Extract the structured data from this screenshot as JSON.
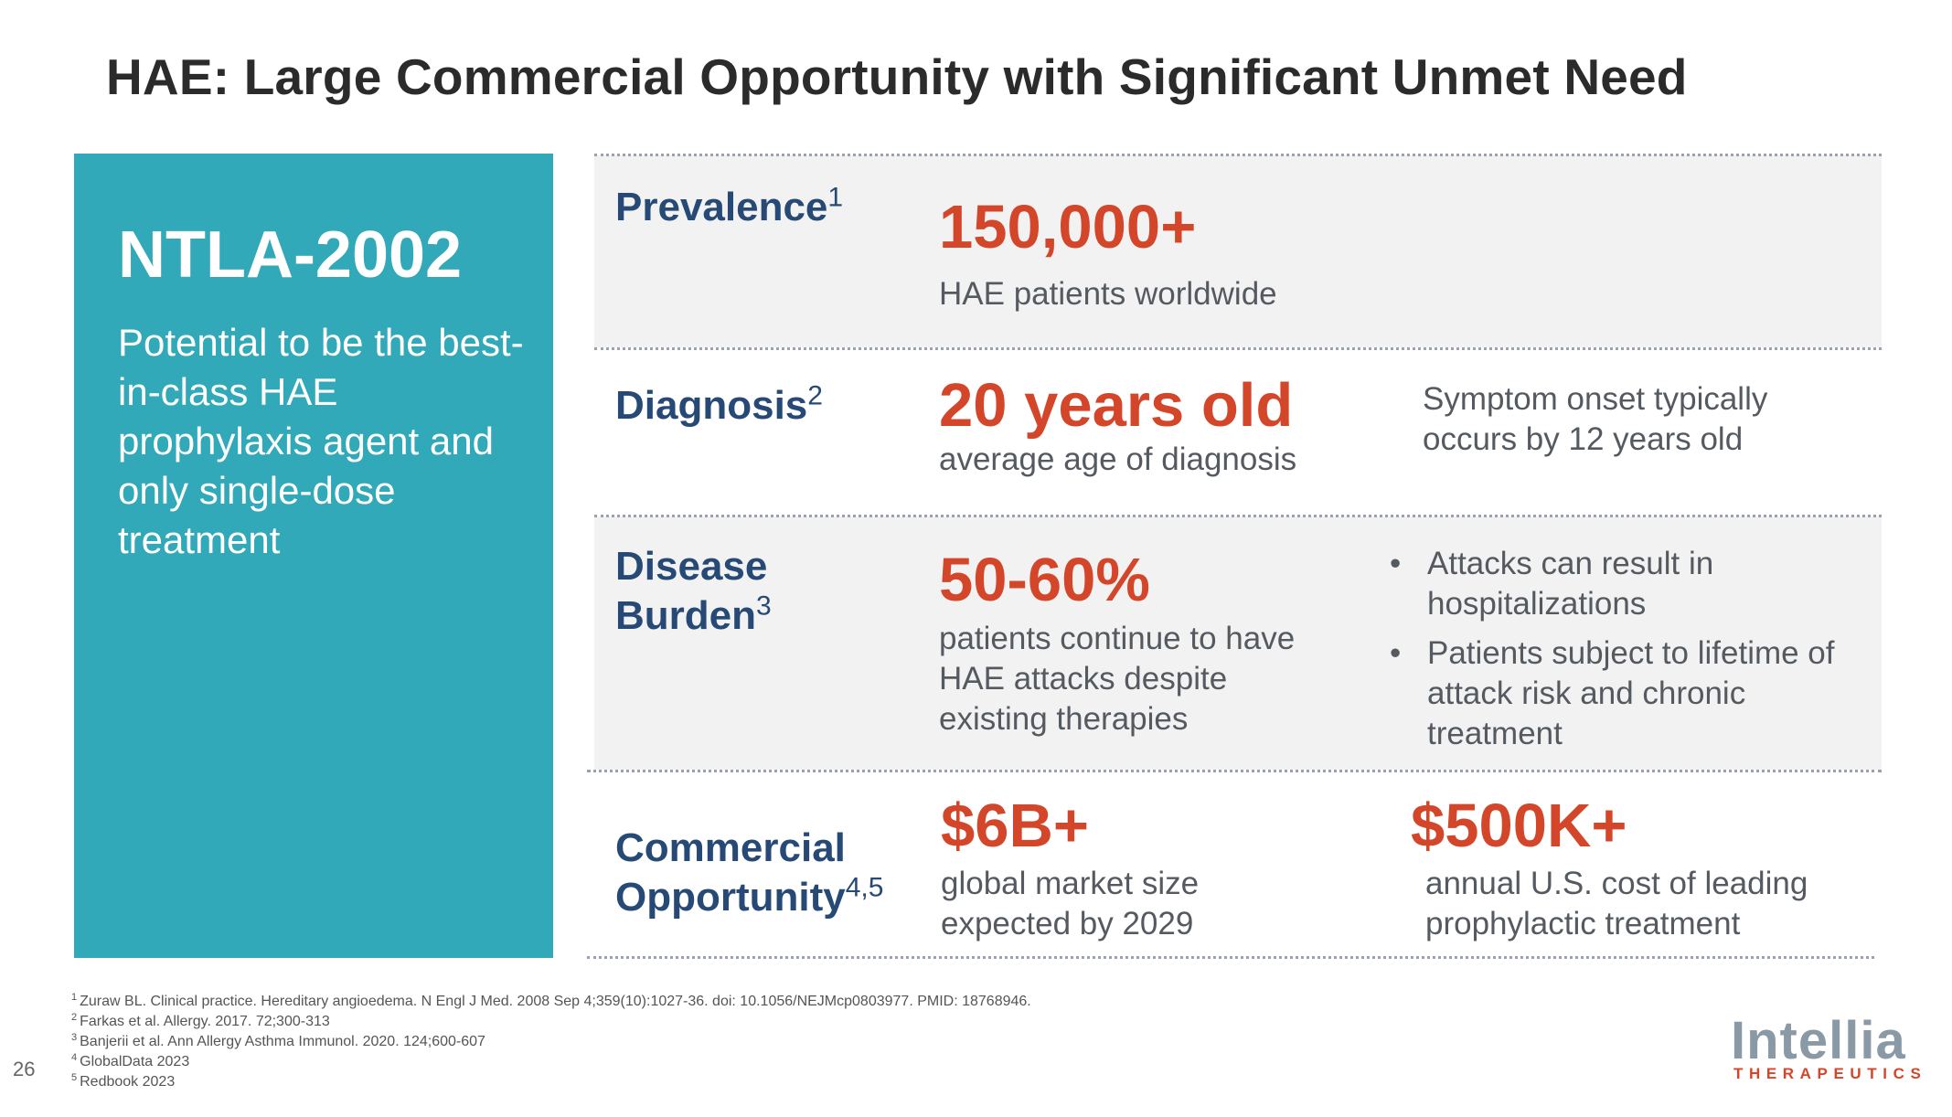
{
  "slide": {
    "title": "HAE: Large Commercial Opportunity with Significant Unmet Need",
    "page_number": "26"
  },
  "panel": {
    "product": "NTLA-2002",
    "description": "Potential to be the best-in-class HAE prophylaxis agent and only single-dose treatment"
  },
  "rows": {
    "prevalence": {
      "label": "Prevalence",
      "ref": "1",
      "stat": "150,000+",
      "stat_desc": "HAE patients worldwide"
    },
    "diagnosis": {
      "label": "Diagnosis",
      "ref": "2",
      "stat": "20 years old",
      "stat_desc": "average age of diagnosis",
      "note": "Symptom onset typically occurs by 12 years old"
    },
    "burden": {
      "label_line1": "Disease",
      "label_line2": "Burden",
      "ref": "3",
      "stat": "50-60%",
      "stat_desc": "patients continue to have HAE attacks despite existing therapies",
      "bullets": [
        "Attacks can result in hospitalizations",
        "Patients subject to lifetime of attack risk and chronic treatment"
      ],
      "bullet_glyph": "•"
    },
    "commercial": {
      "label_line1": "Commercial",
      "label_line2": "Opportunity",
      "ref": "4,5",
      "stat": "$6B+",
      "stat_desc": "global market size expected by 2029",
      "stat2": "$500K+",
      "stat2_desc": "annual U.S. cost of leading prophylactic treatment"
    }
  },
  "footnotes": [
    {
      "num": "1",
      "text": "Zuraw BL. Clinical practice. Hereditary angioedema. N Engl J Med. 2008 Sep 4;359(10):1027-36. doi: 10.1056/NEJMcp0803977. PMID: 18768946."
    },
    {
      "num": "2",
      "text": "Farkas et al. Allergy. 2017. 72;300-313"
    },
    {
      "num": "3",
      "text": "Banjerii et al. Ann Allergy Asthma Immunol. 2020. 124;600-607"
    },
    {
      "num": "4",
      "text": "GlobalData 2023"
    },
    {
      "num": "5",
      "text": "Redbook 2023"
    }
  ],
  "logo": {
    "word": "Intellia",
    "sub": "THERAPEUTICS"
  },
  "colors": {
    "teal": "#31a9b8",
    "navy": "#264a75",
    "accent": "#d4462a",
    "row_bg": "#f2f2f2"
  }
}
